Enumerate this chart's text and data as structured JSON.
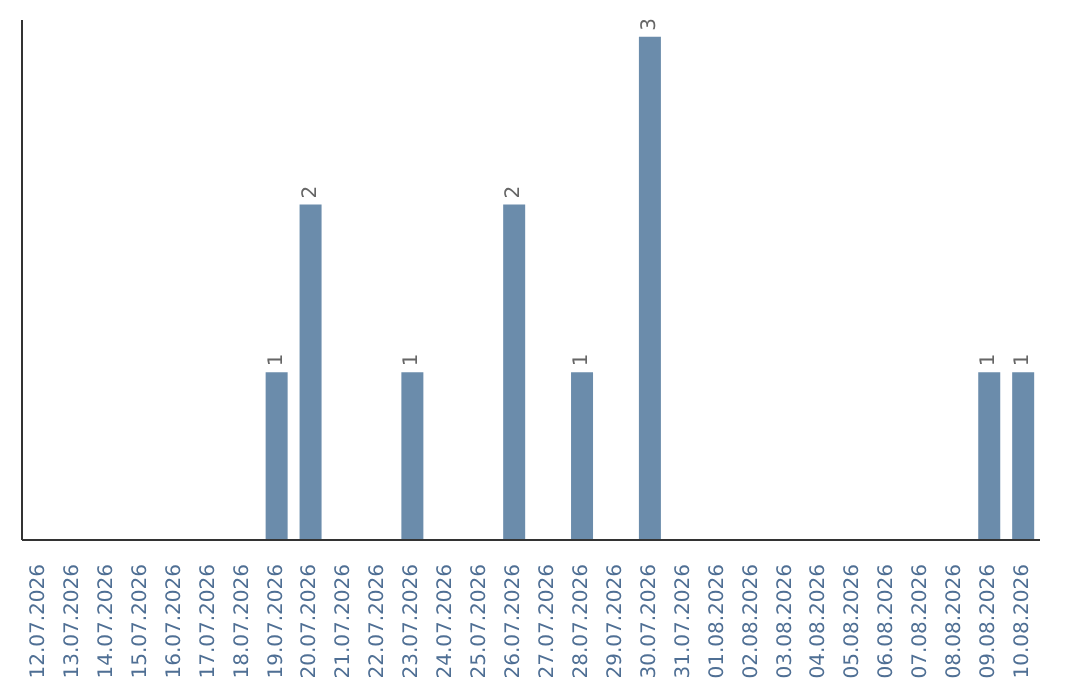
{
  "chart_data": {
    "type": "bar",
    "categories": [
      "12.07.2026",
      "13.07.2026",
      "14.07.2026",
      "15.07.2026",
      "16.07.2026",
      "17.07.2026",
      "18.07.2026",
      "19.07.2026",
      "20.07.2026",
      "21.07.2026",
      "22.07.2026",
      "23.07.2026",
      "24.07.2026",
      "25.07.2026",
      "26.07.2026",
      "27.07.2026",
      "28.07.2026",
      "29.07.2026",
      "30.07.2026",
      "31.07.2026",
      "01.08.2026",
      "02.08.2026",
      "03.08.2026",
      "04.08.2026",
      "05.08.2026",
      "06.08.2026",
      "07.08.2026",
      "08.08.2026",
      "09.08.2026",
      "10.08.2026"
    ],
    "values": [
      null,
      null,
      null,
      null,
      null,
      null,
      null,
      1,
      2,
      null,
      null,
      1,
      null,
      null,
      2,
      null,
      1,
      null,
      3,
      null,
      null,
      null,
      null,
      null,
      null,
      null,
      null,
      null,
      1,
      1
    ],
    "color": "#6b8cab",
    "ylim": [
      0,
      3.1
    ],
    "data_labels": true,
    "tick_labels": "x",
    "grid": false,
    "legend": false
  }
}
